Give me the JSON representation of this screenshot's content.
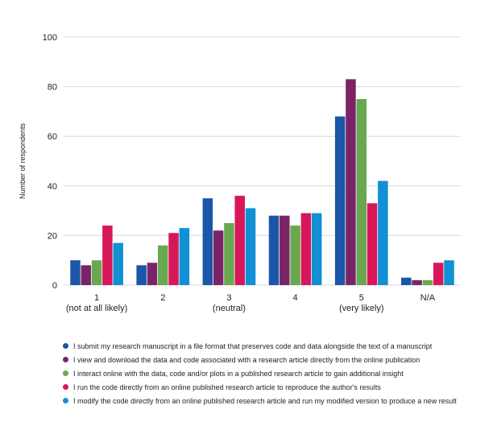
{
  "chart_data": {
    "type": "bar",
    "title": "",
    "xlabel": "",
    "ylabel": "Number of respondents",
    "ylim": [
      0,
      100
    ],
    "yticks": [
      0,
      20,
      40,
      60,
      80,
      100
    ],
    "grid": true,
    "legend_position": "bottom",
    "categories": [
      [
        "1",
        "(not at all likely)"
      ],
      [
        "2"
      ],
      [
        "3",
        "(neutral)"
      ],
      [
        "4"
      ],
      [
        "5",
        "(very likely)"
      ],
      [
        "N/A"
      ]
    ],
    "series": [
      {
        "name": "I submit my research manuscript in a file format that preserves code and data alongside the text of a manuscript",
        "color": "#1b57a8",
        "values": [
          10,
          8,
          35,
          28,
          68,
          3
        ]
      },
      {
        "name": "I view and download the data and code associated with a research article directly from the online publication",
        "color": "#7a2468",
        "values": [
          8,
          9,
          22,
          28,
          83,
          2
        ]
      },
      {
        "name": "I interact online with the data, code and/or plots in a published research article to gain additional insight",
        "color": "#6aa84f",
        "values": [
          10,
          16,
          25,
          24,
          75,
          2
        ]
      },
      {
        "name": "I run the code directly from an online published research article to reproduce the author's results",
        "color": "#d7175a",
        "values": [
          24,
          21,
          36,
          29,
          33,
          9
        ]
      },
      {
        "name": "I modify the code directly from an online published research article and run my modified version to produce a new result",
        "color": "#1190d4",
        "values": [
          17,
          23,
          31,
          29,
          42,
          10
        ]
      }
    ]
  }
}
